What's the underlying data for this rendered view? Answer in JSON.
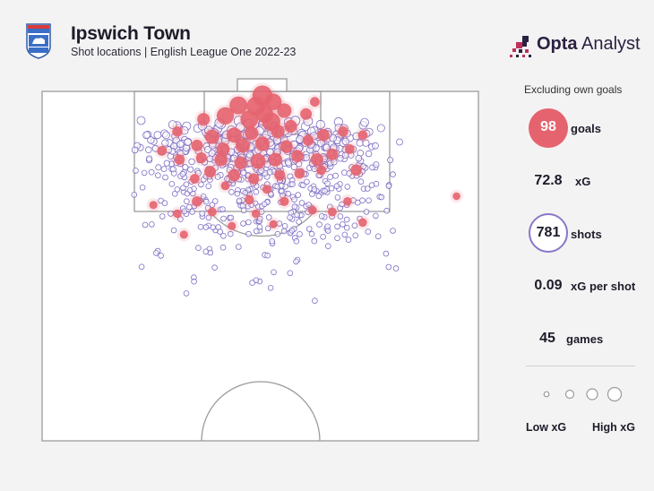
{
  "header": {
    "title": "Ipswich Town",
    "subtitle": "Shot locations | English League One 2022-23"
  },
  "brand": {
    "name_bold": "Opta",
    "name_regular": " Analyst"
  },
  "stats": {
    "note": "Excluding own goals",
    "goals_value": "98",
    "goals_label": "goals",
    "xg_value": "72.8",
    "xg_label": "xG",
    "shots_value": "781",
    "shots_label": "shots",
    "xg_per_shot_value": "0.09",
    "xg_per_shot_label": "xG per shot",
    "games_value": "45",
    "games_label": "games"
  },
  "legend": {
    "low_label": "Low xG",
    "high_label": "High xG"
  },
  "colors": {
    "goal": "#e5636f",
    "shot": "#7d6cc4",
    "pitch_line": "#9b9b9b",
    "text": "#1c1c2a"
  },
  "chart_data": {
    "type": "scatter",
    "description_units": "pitch coordinates: x = 0-100 across width (left to right), y = 0-100 distance from goal line (0 at goal line)",
    "totals": {
      "goals": 98,
      "xG": 72.8,
      "shots": 781,
      "xG_per_shot": 0.09,
      "games": 45
    },
    "goals": [
      {
        "x": 50.5,
        "y": 1.2,
        "xg": 0.75
      },
      {
        "x": 45.0,
        "y": 4.0,
        "xg": 0.55
      },
      {
        "x": 49.0,
        "y": 4.2,
        "xg": 0.6
      },
      {
        "x": 53.0,
        "y": 3.0,
        "xg": 0.45
      },
      {
        "x": 42.0,
        "y": 7.0,
        "xg": 0.5
      },
      {
        "x": 47.5,
        "y": 8.0,
        "xg": 0.55
      },
      {
        "x": 51.0,
        "y": 6.5,
        "xg": 0.5
      },
      {
        "x": 52.5,
        "y": 8.7,
        "xg": 0.6
      },
      {
        "x": 55.5,
        "y": 5.5,
        "xg": 0.3
      },
      {
        "x": 37.0,
        "y": 8.0,
        "xg": 0.2
      },
      {
        "x": 44.0,
        "y": 12.5,
        "xg": 0.35
      },
      {
        "x": 39.0,
        "y": 13.0,
        "xg": 0.3
      },
      {
        "x": 48.0,
        "y": 12.0,
        "xg": 0.25
      },
      {
        "x": 54.0,
        "y": 11.5,
        "xg": 0.25
      },
      {
        "x": 57.0,
        "y": 10.0,
        "xg": 0.2
      },
      {
        "x": 60.5,
        "y": 6.5,
        "xg": 0.15
      },
      {
        "x": 62.5,
        "y": 3.0,
        "xg": 0.08
      },
      {
        "x": 46.0,
        "y": 15.5,
        "xg": 0.3
      },
      {
        "x": 50.5,
        "y": 15.0,
        "xg": 0.3
      },
      {
        "x": 56.0,
        "y": 15.8,
        "xg": 0.2
      },
      {
        "x": 41.5,
        "y": 16.5,
        "xg": 0.22
      },
      {
        "x": 35.5,
        "y": 15.5,
        "xg": 0.15
      },
      {
        "x": 31.0,
        "y": 11.5,
        "xg": 0.1
      },
      {
        "x": 64.5,
        "y": 12.5,
        "xg": 0.18
      },
      {
        "x": 61.0,
        "y": 14.0,
        "xg": 0.12
      },
      {
        "x": 69.0,
        "y": 11.5,
        "xg": 0.1
      },
      {
        "x": 73.5,
        "y": 12.5,
        "xg": 0.08
      },
      {
        "x": 58.5,
        "y": 18.5,
        "xg": 0.18
      },
      {
        "x": 53.5,
        "y": 19.5,
        "xg": 0.25
      },
      {
        "x": 49.5,
        "y": 20.0,
        "xg": 0.35
      },
      {
        "x": 45.5,
        "y": 20.5,
        "xg": 0.2
      },
      {
        "x": 41.0,
        "y": 19.5,
        "xg": 0.22
      },
      {
        "x": 36.5,
        "y": 19.0,
        "xg": 0.12
      },
      {
        "x": 31.5,
        "y": 19.5,
        "xg": 0.1
      },
      {
        "x": 63.0,
        "y": 19.5,
        "xg": 0.2
      },
      {
        "x": 66.5,
        "y": 18.0,
        "xg": 0.15
      },
      {
        "x": 70.5,
        "y": 16.5,
        "xg": 0.08
      },
      {
        "x": 27.5,
        "y": 17.0,
        "xg": 0.08
      },
      {
        "x": 38.5,
        "y": 23.0,
        "xg": 0.15
      },
      {
        "x": 44.0,
        "y": 24.0,
        "xg": 0.18
      },
      {
        "x": 48.5,
        "y": 25.0,
        "xg": 0.12
      },
      {
        "x": 54.5,
        "y": 24.0,
        "xg": 0.12
      },
      {
        "x": 59.0,
        "y": 23.5,
        "xg": 0.1
      },
      {
        "x": 64.0,
        "y": 22.5,
        "xg": 0.08
      },
      {
        "x": 72.0,
        "y": 22.5,
        "xg": 0.14
      },
      {
        "x": 35.0,
        "y": 25.0,
        "xg": 0.08
      },
      {
        "x": 42.0,
        "y": 27.0,
        "xg": 0.06
      },
      {
        "x": 51.5,
        "y": 28.0,
        "xg": 0.06
      },
      {
        "x": 35.5,
        "y": 31.5,
        "xg": 0.1
      },
      {
        "x": 47.5,
        "y": 31.0,
        "xg": 0.07
      },
      {
        "x": 55.5,
        "y": 31.5,
        "xg": 0.07
      },
      {
        "x": 70.0,
        "y": 31.5,
        "xg": 0.05
      },
      {
        "x": 25.5,
        "y": 32.5,
        "xg": 0.04
      },
      {
        "x": 39.0,
        "y": 34.5,
        "xg": 0.06
      },
      {
        "x": 62.0,
        "y": 34.0,
        "xg": 0.05
      },
      {
        "x": 66.5,
        "y": 34.5,
        "xg": 0.06
      },
      {
        "x": 31.0,
        "y": 35.0,
        "xg": 0.05
      },
      {
        "x": 49.0,
        "y": 35.0,
        "xg": 0.05
      },
      {
        "x": 53.0,
        "y": 38.0,
        "xg": 0.04
      },
      {
        "x": 73.5,
        "y": 37.5,
        "xg": 0.05
      },
      {
        "x": 43.5,
        "y": 38.5,
        "xg": 0.04
      },
      {
        "x": 32.5,
        "y": 41.0,
        "xg": 0.04
      },
      {
        "x": 95.0,
        "y": 30.0,
        "xg": 0.03
      }
    ],
    "shots_note": "781 shots in total (including 98 goals); non-goal shot positions are approximated in the rendering script"
  }
}
